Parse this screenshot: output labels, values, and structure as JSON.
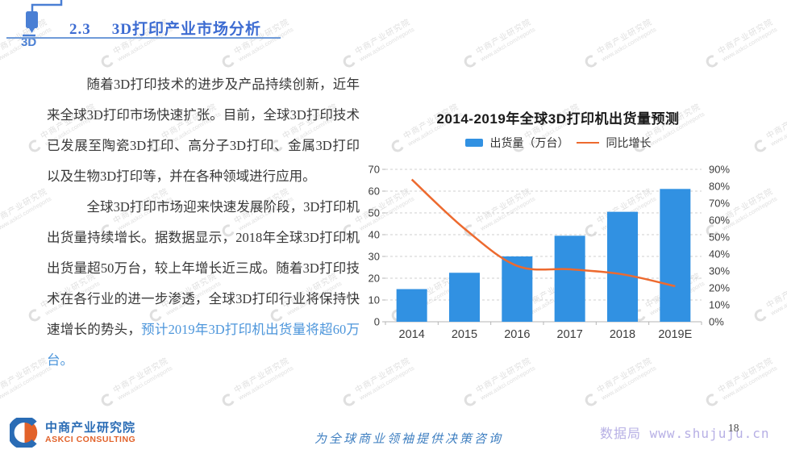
{
  "header": {
    "section_number": "2.3",
    "title": "3D打印产业市场分析",
    "icon_label": "3D"
  },
  "paragraphs": [
    {
      "text": "随着3D打印技术的进步及产品持续创新，近年来全球3D打印市场快速扩张。目前，全球3D打印技术已发展至陶瓷3D打印、高分子3D打印、金属3D打印以及生物3D打印等，并在各种领域进行应用。"
    },
    {
      "text": "全球3D打印市场迎来快速发展阶段，3D打印机出货量持续增长。据数据显示，2018年全球3D打印机出货量超50万台，较上年增长近三成。随着3D打印技术在各行业的进一步渗透，全球3D打印行业将保持快速增长的势头，",
      "highlight": "预计2019年3D打印机出货量将超60万台。"
    }
  ],
  "chart_data": {
    "type": "bar+line",
    "title": "2014-2019年全球3D打印机出货量预测",
    "categories": [
      "2014",
      "2015",
      "2016",
      "2017",
      "2018",
      "2019E"
    ],
    "series": [
      {
        "name": "出货量（万台）",
        "type": "bar",
        "axis": "left",
        "color": "#3191e2",
        "values": [
          15,
          22.5,
          30,
          39.5,
          50.5,
          61
        ]
      },
      {
        "name": "同比增长",
        "type": "line",
        "axis": "right",
        "color": "#ed6a2f",
        "unit": "%",
        "values": [
          84,
          55,
          33,
          31,
          28,
          21
        ]
      }
    ],
    "left_axis": {
      "min": 0,
      "max": 70,
      "step": 10,
      "suffix": ""
    },
    "right_axis": {
      "min": 0,
      "max": 90,
      "step": 10,
      "suffix": "%"
    },
    "legend_position": "top",
    "grid": "horizontal-dashed"
  },
  "watermark": {
    "line1": "中商产业研究院",
    "line2": "www.askci.com/reports"
  },
  "footer": {
    "logo_title": "中商产业研究院",
    "logo_subtitle": "ASKCI CONSULTING",
    "slogan": "为全球商业领袖提供决策咨询",
    "site_text": "数据局 www.shujuju.cn",
    "page_number": "18"
  }
}
